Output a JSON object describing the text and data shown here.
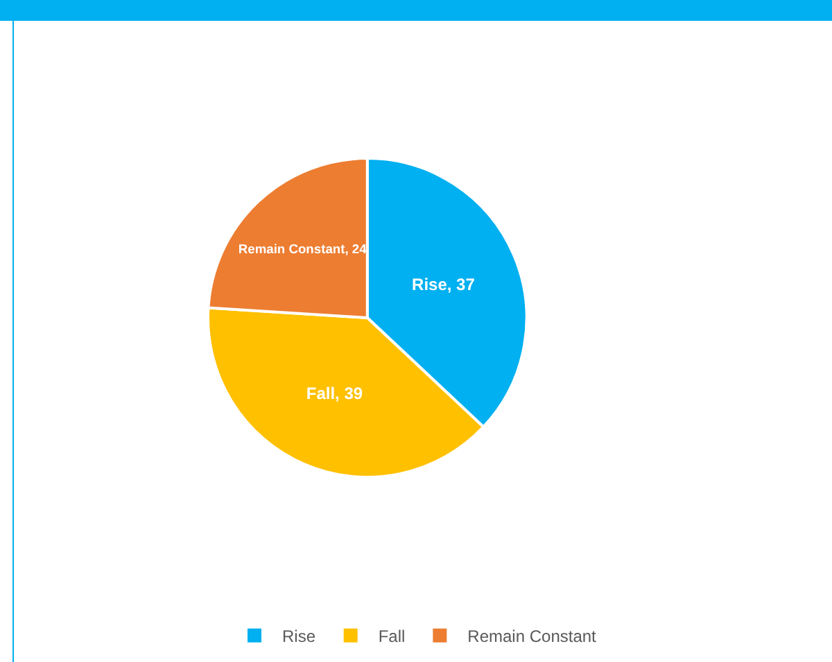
{
  "chart_data": {
    "type": "pie",
    "categories": [
      "Rise",
      "Fall",
      "Remain Constant"
    ],
    "values": [
      37,
      39,
      24
    ],
    "colors": [
      "#00b0f0",
      "#ffc000",
      "#ed7d31"
    ],
    "value_labels": [
      "Rise, 37",
      "Fall, 39",
      "Remain Constant, 24"
    ],
    "legend": "bottom"
  }
}
